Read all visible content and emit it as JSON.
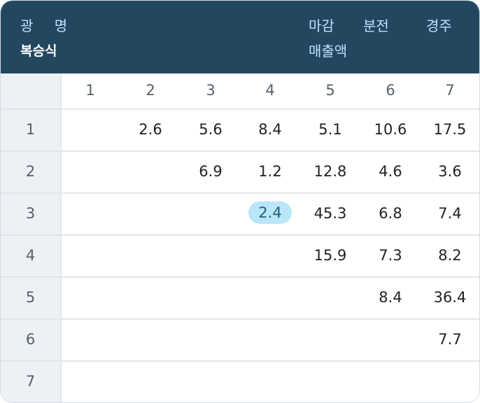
{
  "header": {
    "title": "광 명",
    "subtitle": "복승식",
    "col1_line1": "마감",
    "col1_line2": "매출액",
    "col2_line1": "분전",
    "col3_line1": "경주"
  },
  "table": {
    "col_headers": [
      "1",
      "2",
      "3",
      "4",
      "5",
      "6",
      "7"
    ],
    "row_labels": [
      "1",
      "2",
      "3",
      "4",
      "5",
      "6",
      "7"
    ],
    "rows": [
      [
        "",
        "2.6",
        "5.6",
        "8.4",
        "5.1",
        "10.6",
        "17.5"
      ],
      [
        "",
        "",
        "6.9",
        "1.2",
        "12.8",
        "4.6",
        "3.6"
      ],
      [
        "",
        "",
        "",
        "2.4",
        "45.3",
        "6.8",
        "7.4"
      ],
      [
        "",
        "",
        "",
        "",
        "15.9",
        "7.3",
        "8.2"
      ],
      [
        "",
        "",
        "",
        "",
        "",
        "8.4",
        "36.4"
      ],
      [
        "",
        "",
        "",
        "",
        "",
        "",
        "7.7"
      ],
      [
        "",
        "",
        "",
        "",
        "",
        "",
        ""
      ]
    ],
    "highlight": {
      "row": 3,
      "col": 4
    }
  },
  "colors": {
    "header_bg": "#23475f",
    "header_text": "#bfe3ff",
    "highlight_bg": "#b9e6f8"
  }
}
